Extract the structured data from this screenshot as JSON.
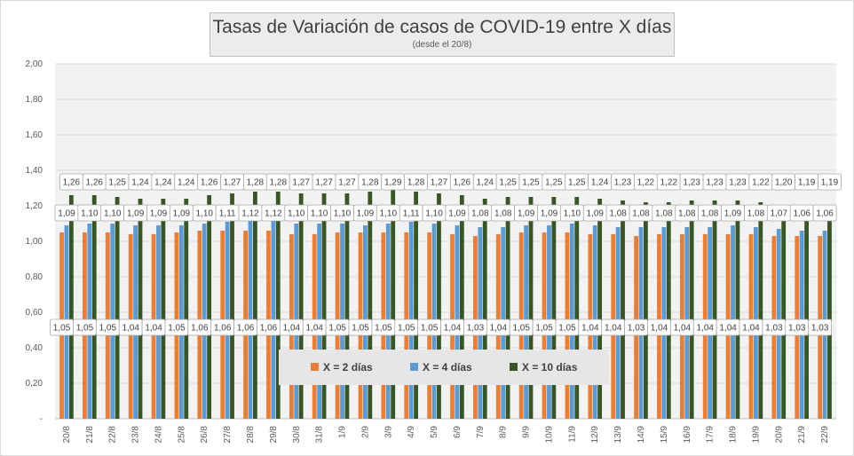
{
  "chart_data": {
    "type": "bar",
    "title": "Tasas de Variación de casos de COVID-19 entre X días",
    "subtitle": "(desde el 20/8)",
    "xlabel": "",
    "ylabel": "",
    "ylim": [
      0,
      2
    ],
    "ytick_labels": [
      "-",
      "0,20",
      "0,40",
      "0,60",
      "0,80",
      "1,00",
      "1,20",
      "1,40",
      "1,60",
      "1,80",
      "2,00"
    ],
    "grid": true,
    "legend_position": "bottom-center",
    "categories": [
      "20/8",
      "21/8",
      "22/8",
      "23/8",
      "24/8",
      "25/8",
      "26/8",
      "27/8",
      "28/8",
      "29/8",
      "30/8",
      "31/8",
      "1/9",
      "2/9",
      "3/9",
      "4/9",
      "5/9",
      "6/9",
      "7/9",
      "8/9",
      "9/9",
      "10/9",
      "11/9",
      "12/9",
      "13/9",
      "14/9",
      "15/9",
      "16/9",
      "17/9",
      "18/9",
      "19/9",
      "20/9",
      "21/9",
      "22/9"
    ],
    "series": [
      {
        "name": "X = 2 días",
        "color": "#ed7d31",
        "values": [
          1.05,
          1.05,
          1.05,
          1.04,
          1.04,
          1.05,
          1.06,
          1.06,
          1.06,
          1.06,
          1.04,
          1.04,
          1.05,
          1.05,
          1.05,
          1.05,
          1.05,
          1.04,
          1.03,
          1.04,
          1.05,
          1.05,
          1.05,
          1.04,
          1.04,
          1.03,
          1.04,
          1.04,
          1.04,
          1.04,
          1.04,
          1.03,
          1.03,
          1.03
        ],
        "labels": [
          "1,05",
          "1,05",
          "1,05",
          "1,04",
          "1,04",
          "1,05",
          "1,06",
          "1,06",
          "1,06",
          "1,06",
          "1,04",
          "1,04",
          "1,05",
          "1,05",
          "1,05",
          "1,05",
          "1,05",
          "1,04",
          "1,03",
          "1,04",
          "1,05",
          "1,05",
          "1,05",
          "1,04",
          "1,04",
          "1,03",
          "1,04",
          "1,04",
          "1,04",
          "1,04",
          "1,04",
          "1,03",
          "1,03",
          "1,03"
        ]
      },
      {
        "name": "X = 4 días",
        "color": "#5b9bd5",
        "values": [
          1.09,
          1.1,
          1.1,
          1.09,
          1.09,
          1.09,
          1.1,
          1.11,
          1.12,
          1.12,
          1.1,
          1.1,
          1.1,
          1.09,
          1.1,
          1.11,
          1.1,
          1.09,
          1.08,
          1.08,
          1.09,
          1.09,
          1.1,
          1.09,
          1.08,
          1.08,
          1.08,
          1.08,
          1.08,
          1.09,
          1.08,
          1.07,
          1.06,
          1.06
        ],
        "labels": [
          "1,09",
          "1,10",
          "1,10",
          "1,09",
          "1,09",
          "1,09",
          "1,10",
          "1,11",
          "1,12",
          "1,12",
          "1,10",
          "1,10",
          "1,10",
          "1,09",
          "1,10",
          "1,11",
          "1,10",
          "1,09",
          "1,08",
          "1,08",
          "1,09",
          "1,09",
          "1,10",
          "1,09",
          "1,08",
          "1,08",
          "1,08",
          "1,08",
          "1,08",
          "1,09",
          "1,08",
          "1,07",
          "1,06",
          "1,06"
        ]
      },
      {
        "name": "X = 10 días",
        "color": "#375623",
        "values": [
          1.26,
          1.26,
          1.25,
          1.24,
          1.24,
          1.24,
          1.26,
          1.27,
          1.28,
          1.28,
          1.27,
          1.27,
          1.27,
          1.28,
          1.29,
          1.28,
          1.27,
          1.26,
          1.24,
          1.25,
          1.25,
          1.25,
          1.25,
          1.24,
          1.23,
          1.22,
          1.22,
          1.23,
          1.23,
          1.23,
          1.22,
          1.2,
          1.19,
          1.19
        ],
        "labels": [
          "1,26",
          "1,26",
          "1,25",
          "1,24",
          "1,24",
          "1,24",
          "1,26",
          "1,27",
          "1,28",
          "1,28",
          "1,27",
          "1,27",
          "1,27",
          "1,28",
          "1,29",
          "1,28",
          "1,27",
          "1,26",
          "1,24",
          "1,25",
          "1,25",
          "1,25",
          "1,25",
          "1,24",
          "1,23",
          "1,22",
          "1,22",
          "1,23",
          "1,23",
          "1,23",
          "1,22",
          "1,20",
          "1,19",
          "1,19"
        ]
      }
    ]
  }
}
